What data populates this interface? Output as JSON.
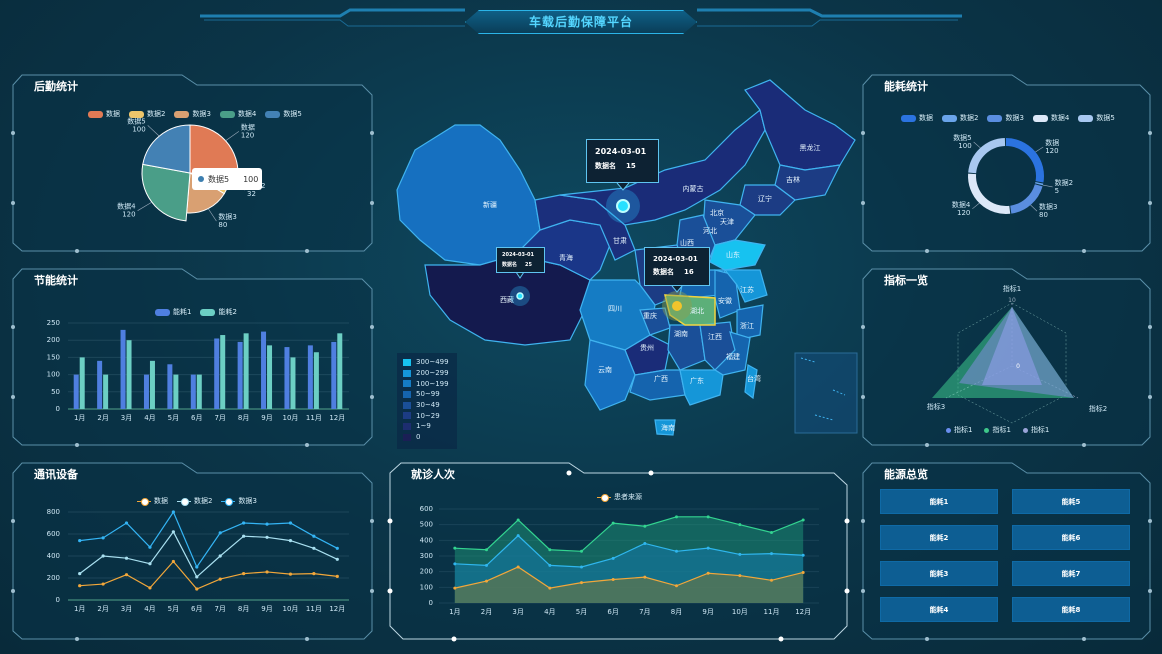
{
  "header": {
    "title": "车载后勤保障平台"
  },
  "logistics": {
    "title": "后勤统计",
    "legend": [
      "数据",
      "数据2",
      "数据3",
      "数据4",
      "数据5"
    ],
    "colors": [
      "#e07a55",
      "#eec56a",
      "#d9a072",
      "#4a9e88",
      "#4381b4"
    ],
    "labels": [
      {
        "name": "数据",
        "value": "120"
      },
      {
        "name": "数据2",
        "value": "32"
      },
      {
        "name": "数据3",
        "value": "80"
      },
      {
        "name": "数据4",
        "value": "120"
      },
      {
        "name": "数据5",
        "value": "100"
      }
    ],
    "tooltip": {
      "name": "数据5",
      "value": "100"
    }
  },
  "saving": {
    "title": "节能统计",
    "legend": [
      "能耗1",
      "能耗2"
    ],
    "colors": [
      "#4f7fe0",
      "#6ccfc4"
    ]
  },
  "comm": {
    "title": "通讯设备",
    "legend": [
      "数据",
      "数据2",
      "数据3"
    ],
    "colors": [
      "#f2a73a",
      "#a9e0f0",
      "#34b4f4"
    ]
  },
  "visits": {
    "title": "就诊人次",
    "legend": [
      "患者来源"
    ]
  },
  "consumption": {
    "title": "能耗统计",
    "legend": [
      "数据",
      "数据2",
      "数据3",
      "数据4",
      "数据5"
    ],
    "colors": [
      "#2b73e0",
      "#6aa4ea",
      "#5a8ee0",
      "#dce8f8",
      "#a8c8f0"
    ],
    "labels": [
      {
        "name": "数据",
        "value": "120"
      },
      {
        "name": "数据2",
        "value": "5"
      },
      {
        "name": "数据3",
        "value": "80"
      },
      {
        "name": "数据4",
        "value": "120"
      },
      {
        "name": "数据5",
        "value": "100"
      }
    ]
  },
  "indicators": {
    "title": "指标一览",
    "axes": [
      "指标1",
      "指标2",
      "指标3"
    ],
    "max": "10",
    "center": "0",
    "legend": [
      "指标1",
      "指标1",
      "指标1"
    ]
  },
  "energy": {
    "title": "能源总览",
    "buttons": [
      "能耗1",
      "能耗5",
      "能耗2",
      "能耗6",
      "能耗3",
      "能耗7",
      "能耗4",
      "能耗8"
    ]
  },
  "map": {
    "legend": [
      "300~499",
      "200~299",
      "100~199",
      "50~99",
      "30~49",
      "10~29",
      "1~9",
      "0"
    ],
    "legend_colors": [
      "#17c2f0",
      "#1596d8",
      "#157cc4",
      "#1564ae",
      "#1a4f98",
      "#1c3c84",
      "#1d2d70",
      "#1a1f55"
    ],
    "provinces": [
      "新疆",
      "西藏",
      "青海",
      "甘肃",
      "内蒙古",
      "黑龙江",
      "吉林",
      "辽宁",
      "北京",
      "天津",
      "河北",
      "山西",
      "山东",
      "四川",
      "重庆",
      "湖北",
      "安徽",
      "江苏",
      "浙江",
      "贵州",
      "湖南",
      "江西",
      "福建",
      "云南",
      "广西",
      "广东",
      "台湾",
      "海南"
    ],
    "tooltips": [
      {
        "date": "2024-03-01",
        "label": "数据名",
        "value": "15"
      },
      {
        "date": "2024-03-01",
        "label": "数据名",
        "value": "25"
      },
      {
        "date": "2024-03-01",
        "label": "数据名",
        "value": "16"
      }
    ]
  },
  "months": [
    "1月",
    "2月",
    "3月",
    "4月",
    "5月",
    "6月",
    "7月",
    "8月",
    "9月",
    "10月",
    "11月",
    "12月"
  ],
  "chart_data": [
    {
      "type": "pie",
      "title": "后勤统计",
      "categories": [
        "数据",
        "数据2",
        "数据3",
        "数据4",
        "数据5"
      ],
      "values": [
        120,
        32,
        80,
        120,
        100
      ]
    },
    {
      "type": "bar",
      "title": "节能统计",
      "categories": [
        "1月",
        "2月",
        "3月",
        "4月",
        "5月",
        "6月",
        "7月",
        "8月",
        "9月",
        "10月",
        "11月",
        "12月"
      ],
      "ylim": [
        0,
        250
      ],
      "yticks": [
        0,
        50,
        100,
        150,
        200,
        250
      ],
      "series": [
        {
          "name": "能耗1",
          "values": [
            100,
            140,
            230,
            100,
            130,
            100,
            205,
            195,
            225,
            180,
            185,
            195
          ]
        },
        {
          "name": "能耗2",
          "values": [
            150,
            100,
            200,
            140,
            100,
            100,
            215,
            220,
            185,
            150,
            165,
            220
          ]
        }
      ]
    },
    {
      "type": "line",
      "title": "通讯设备",
      "categories": [
        "1月",
        "2月",
        "3月",
        "4月",
        "5月",
        "6月",
        "7月",
        "8月",
        "9月",
        "10月",
        "11月",
        "12月"
      ],
      "ylim": [
        0,
        800
      ],
      "yticks": [
        0,
        200,
        400,
        600,
        800
      ],
      "series": [
        {
          "name": "数据",
          "values": [
            130,
            145,
            230,
            110,
            350,
            100,
            190,
            240,
            255,
            235,
            240,
            215
          ]
        },
        {
          "name": "数据2",
          "values": [
            240,
            400,
            380,
            330,
            620,
            210,
            400,
            580,
            570,
            540,
            470,
            370
          ]
        },
        {
          "name": "数据3",
          "values": [
            540,
            565,
            700,
            480,
            800,
            300,
            610,
            700,
            690,
            700,
            580,
            470
          ]
        }
      ]
    },
    {
      "type": "area",
      "title": "就诊人次",
      "categories": [
        "1月",
        "2月",
        "3月",
        "4月",
        "5月",
        "6月",
        "7月",
        "8月",
        "9月",
        "10月",
        "11月",
        "12月"
      ],
      "ylim": [
        0,
        600
      ],
      "yticks": [
        0,
        100,
        200,
        300,
        400,
        500,
        600
      ],
      "series": [
        {
          "name": "患者来源",
          "values": [
            95,
            140,
            230,
            95,
            130,
            150,
            165,
            110,
            190,
            175,
            145,
            195
          ]
        },
        {
          "values": [
            250,
            240,
            430,
            240,
            230,
            285,
            380,
            330,
            350,
            310,
            315,
            305
          ]
        },
        {
          "values": [
            350,
            340,
            530,
            340,
            330,
            510,
            490,
            550,
            550,
            500,
            450,
            530
          ]
        }
      ]
    },
    {
      "type": "pie",
      "title": "能耗统计",
      "categories": [
        "数据",
        "数据2",
        "数据3",
        "数据4",
        "数据5"
      ],
      "values": [
        120,
        5,
        80,
        120,
        100
      ]
    },
    {
      "type": "radar",
      "title": "指标一览",
      "categories": [
        "指标1",
        "指标2",
        "指标3"
      ],
      "max": 10
    }
  ]
}
